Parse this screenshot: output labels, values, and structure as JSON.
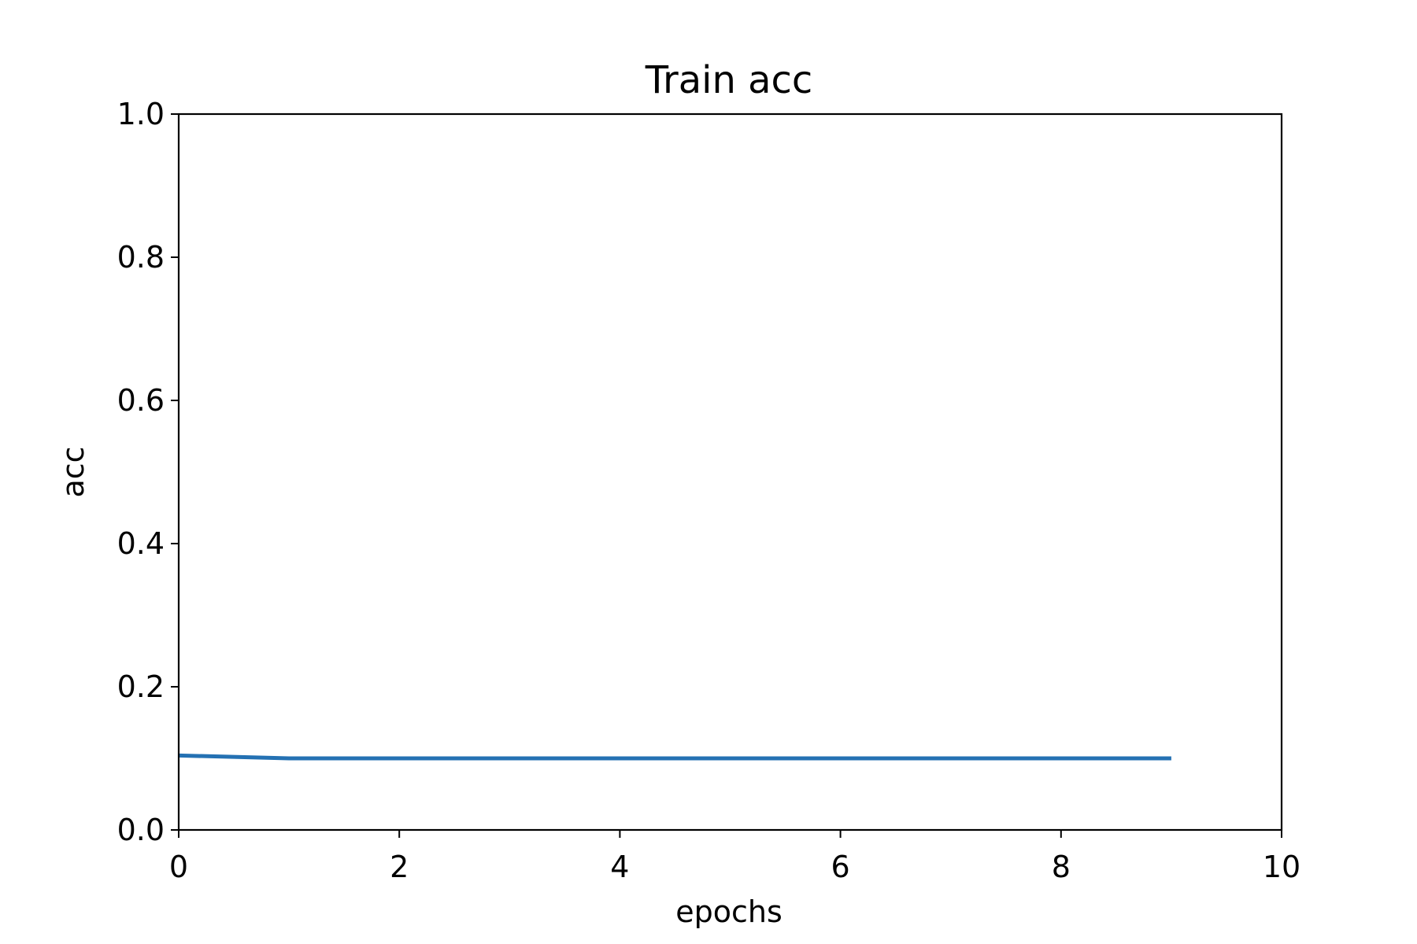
{
  "chart_data": {
    "type": "line",
    "title": "Train acc",
    "xlabel": "epochs",
    "ylabel": "acc",
    "xlim": [
      0,
      10
    ],
    "ylim": [
      0.0,
      1.0
    ],
    "grid": false,
    "xticks": [
      0,
      2,
      4,
      6,
      8,
      10
    ],
    "xtick_labels": [
      "0",
      "2",
      "4",
      "6",
      "8",
      "10"
    ],
    "yticks": [
      0.0,
      0.2,
      0.4,
      0.6,
      0.8,
      1.0
    ],
    "ytick_labels": [
      "0.0",
      "0.2",
      "0.4",
      "0.6",
      "0.8",
      "1.0"
    ],
    "series": [
      {
        "color": "#2471b3",
        "x": [
          0,
          1,
          2,
          3,
          4,
          5,
          6,
          7,
          8,
          9
        ],
        "y": [
          0.104,
          0.1,
          0.1,
          0.1,
          0.1,
          0.1,
          0.1,
          0.1,
          0.1,
          0.1
        ]
      }
    ]
  }
}
